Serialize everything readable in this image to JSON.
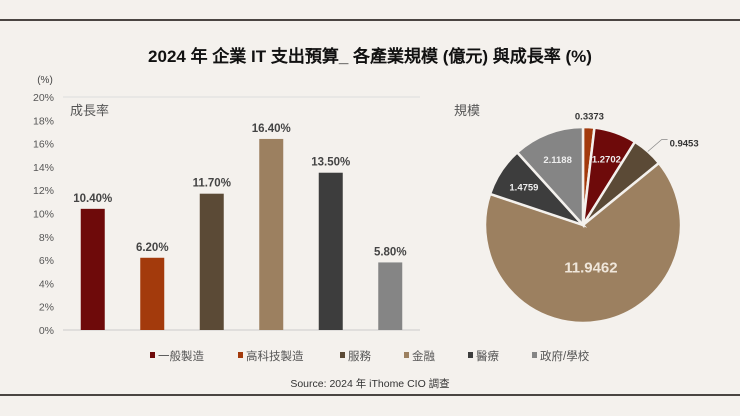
{
  "chart_data": [
    {
      "type": "bar",
      "title": "2024 年 企業 IT 支出預算_ 各產業規模 (億元) 與成長率 (%)",
      "subtitle": "成長率",
      "ylabel": "(%)",
      "ylim": [
        0,
        20
      ],
      "yticks": [
        "0%",
        "2%",
        "4%",
        "6%",
        "8%",
        "10%",
        "12%",
        "14%",
        "16%",
        "18%",
        "20%"
      ],
      "categories": [
        "一般製造",
        "高科技製造",
        "服務",
        "金融",
        "醫療",
        "政府/學校"
      ],
      "values": [
        10.4,
        6.2,
        11.7,
        16.4,
        13.5,
        5.8
      ],
      "data_labels": [
        "10.40%",
        "6.20%",
        "11.70%",
        "16.40%",
        "13.50%",
        "5.80%"
      ],
      "grid": false,
      "legend": "bottom"
    },
    {
      "type": "pie",
      "subtitle": "規模",
      "slices": [
        {
          "category": "高科技製造",
          "value": 0.3373,
          "label": "0.3373"
        },
        {
          "category": "一般製造",
          "value": 1.2702,
          "label": "1.2702"
        },
        {
          "category": "服務",
          "value": 0.9453,
          "label": "0.9453"
        },
        {
          "category": "金融",
          "value": 11.9462,
          "label": "11.9462"
        },
        {
          "category": "醫療",
          "value": 1.4759,
          "label": "1.4759"
        },
        {
          "category": "政府/學校",
          "value": 2.1188,
          "label": "2.1188"
        }
      ]
    }
  ],
  "colors": {
    "一般製造": "#6e0a0a",
    "高科技製造": "#a33a0c",
    "服務": "#5b4a36",
    "金融": "#9c8060",
    "醫療": "#3d3d3d",
    "政府/學校": "#858585"
  },
  "source": "Source:  2024 年 iThome CIO 調查"
}
